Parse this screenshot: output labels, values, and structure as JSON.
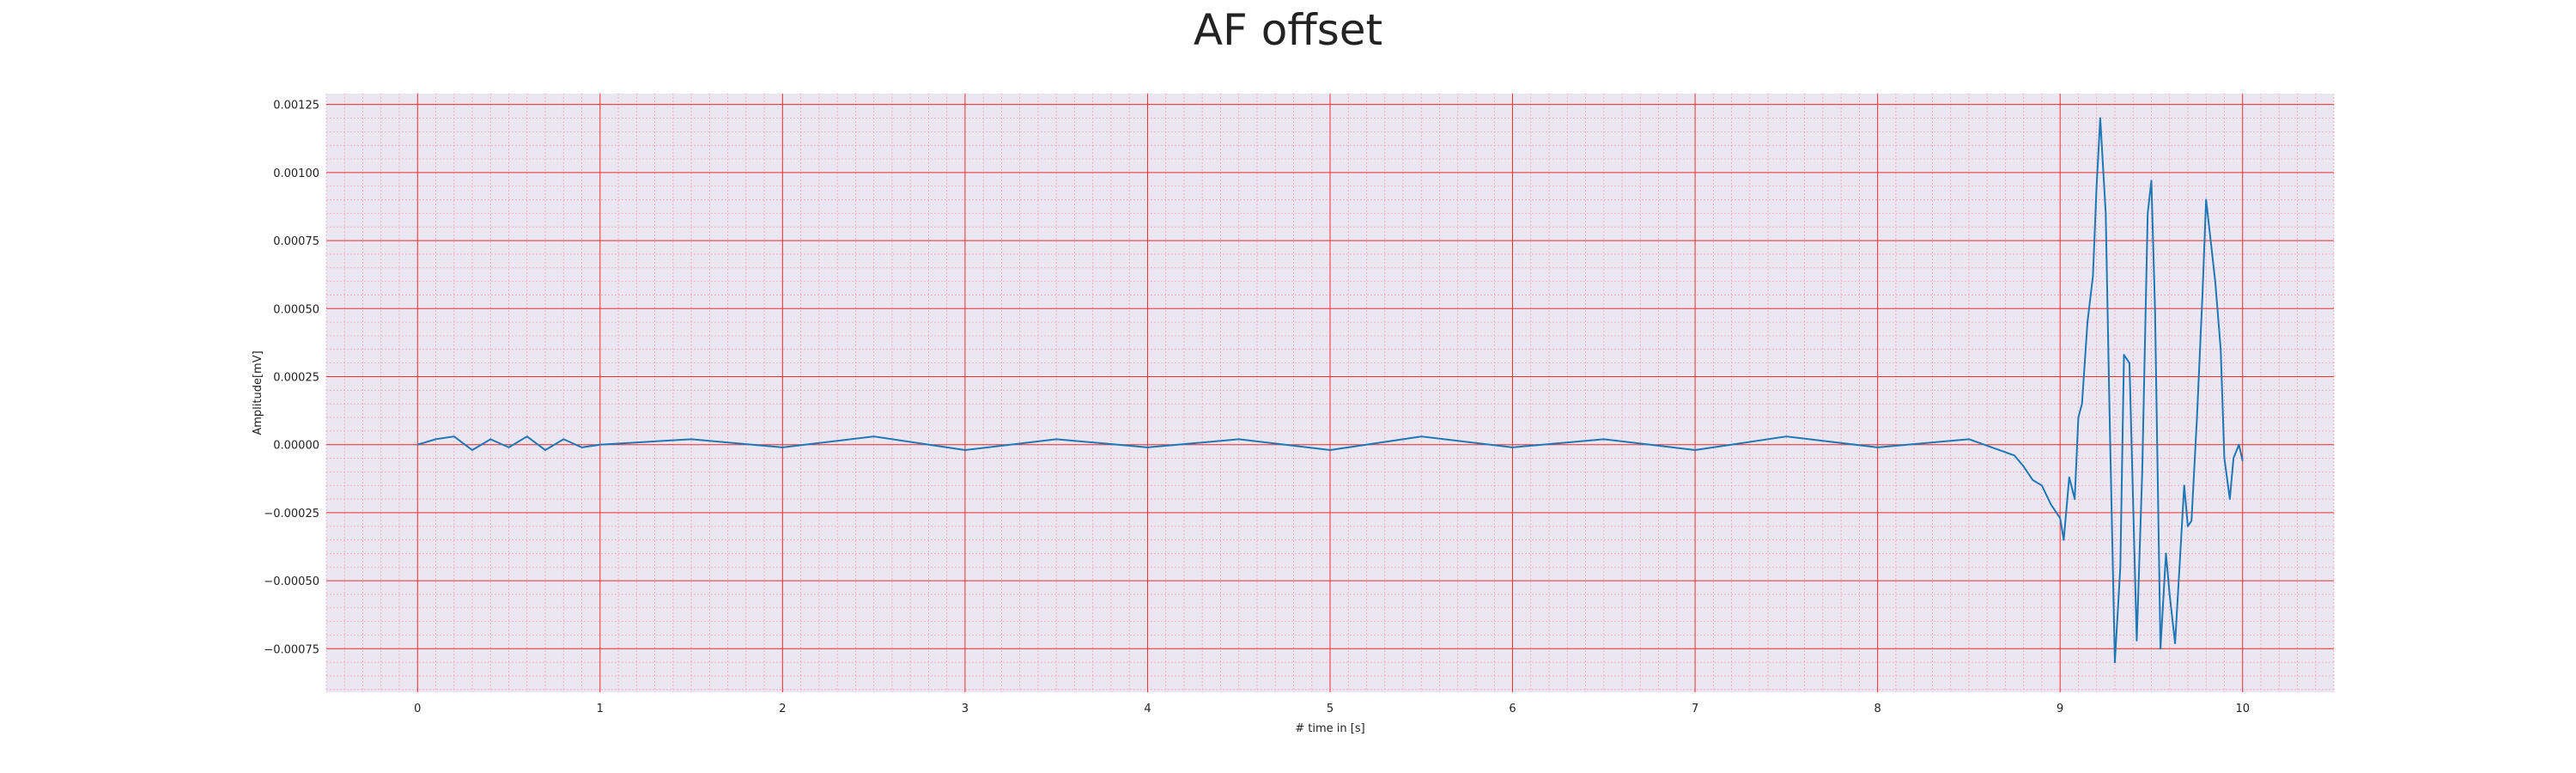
{
  "chart_data": {
    "type": "line",
    "title": "AF offset",
    "xlabel": "# time in [s]",
    "ylabel": "Amplitude[mV]",
    "xlim": [
      -0.5,
      10.5
    ],
    "ylim": [
      -0.00091,
      0.00129
    ],
    "xticks": [
      0,
      1,
      2,
      3,
      4,
      5,
      6,
      7,
      8,
      9,
      10
    ],
    "xtick_labels": [
      "0",
      "1",
      "2",
      "3",
      "4",
      "5",
      "6",
      "7",
      "8",
      "9",
      "10"
    ],
    "yticks": [
      -0.00075,
      -0.0005,
      -0.00025,
      0.0,
      0.00025,
      0.0005,
      0.00075,
      0.001,
      0.00125
    ],
    "ytick_labels": [
      "−0.00075",
      "−0.00050",
      "−0.00025",
      "0.00000",
      "0.00025",
      "0.00050",
      "0.00075",
      "0.00100",
      "0.00125"
    ],
    "grid": {
      "major": true,
      "minor": true
    },
    "colors": {
      "background": "#eae6f2",
      "major_grid": "#ee3030",
      "minor_grid": "#f4a3b8",
      "line": "#1f77b4"
    },
    "series": [
      {
        "x": [
          0,
          0.1,
          0.2,
          0.3,
          0.4,
          0.5,
          0.6,
          0.7,
          0.8,
          0.9,
          1.0,
          1.5,
          2.0,
          2.5,
          3.0,
          3.5,
          4.0,
          4.5,
          5.0,
          5.5,
          6.0,
          6.5,
          7.0,
          7.5,
          8.0,
          8.5,
          8.75,
          8.8,
          8.85,
          8.9,
          8.95,
          9.0,
          9.02,
          9.05,
          9.08,
          9.1,
          9.12,
          9.15,
          9.18,
          9.2,
          9.22,
          9.25,
          9.27,
          9.3,
          9.33,
          9.35,
          9.38,
          9.42,
          9.45,
          9.48,
          9.5,
          9.52,
          9.55,
          9.58,
          9.6,
          9.63,
          9.65,
          9.68,
          9.7,
          9.72,
          9.75,
          9.78,
          9.8,
          9.85,
          9.88,
          9.9,
          9.93,
          9.95,
          9.98,
          10.0
        ],
        "y": [
          0.0,
          2e-05,
          3e-05,
          -2e-05,
          2e-05,
          -1e-05,
          3e-05,
          -2e-05,
          2e-05,
          -1e-05,
          0.0,
          2e-05,
          -1e-05,
          3e-05,
          -2e-05,
          2e-05,
          -1e-05,
          2e-05,
          -2e-05,
          3e-05,
          -1e-05,
          2e-05,
          -2e-05,
          3e-05,
          -1e-05,
          2e-05,
          -4e-05,
          -8e-05,
          -0.00013,
          -0.00015,
          -0.00022,
          -0.00027,
          -0.00035,
          -0.00012,
          -0.0002,
          0.0001,
          0.00015,
          0.00045,
          0.00062,
          0.00095,
          0.0012,
          0.00085,
          0.00015,
          -0.0008,
          -0.00045,
          0.00033,
          0.0003,
          -0.00072,
          -0.0001,
          0.00085,
          0.00097,
          0.0005,
          -0.00075,
          -0.0004,
          -0.00055,
          -0.00073,
          -0.0005,
          -0.00015,
          -0.0003,
          -0.00028,
          0.0001,
          0.00055,
          0.0009,
          0.0006,
          0.00035,
          -5e-05,
          -0.0002,
          -5e-05,
          0.0,
          -6e-05
        ]
      }
    ]
  }
}
